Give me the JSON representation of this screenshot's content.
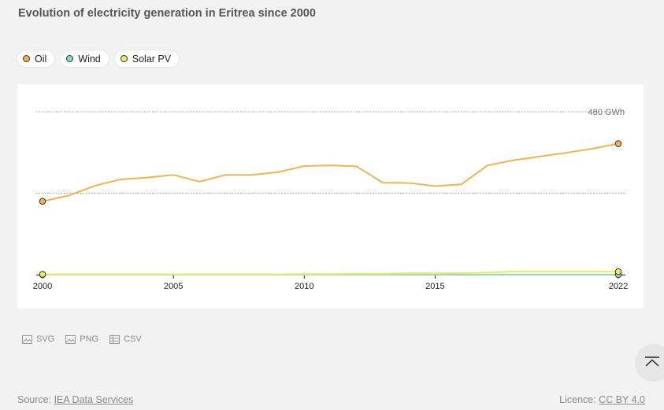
{
  "title": "Evolution of electricity generation in Eritrea since 2000",
  "legend": [
    {
      "label": "Oil",
      "color": "#f0b44f"
    },
    {
      "label": "Wind",
      "color": "#8fd6cf"
    },
    {
      "label": "Solar PV",
      "color": "#ecec5a"
    }
  ],
  "chart_data": {
    "type": "line",
    "title": "Evolution of electricity generation in Eritrea since 2000",
    "x": [
      2000,
      2001,
      2002,
      2003,
      2004,
      2005,
      2006,
      2007,
      2008,
      2009,
      2010,
      2011,
      2012,
      2013,
      2014,
      2015,
      2016,
      2017,
      2018,
      2019,
      2020,
      2021,
      2022
    ],
    "x_ticks": [
      "2000",
      "2005",
      "2010",
      "2015",
      "2022"
    ],
    "y_gridline_label": "480 GWh",
    "ylim": [
      0,
      480
    ],
    "grid": true,
    "legend_position": "top-left",
    "series": [
      {
        "name": "Oil",
        "color": "#f0b44f",
        "values": [
          216,
          233,
          262,
          281,
          286,
          294,
          274,
          294,
          294,
          302,
          320,
          322,
          319,
          271,
          270,
          261,
          266,
          322,
          337,
          348,
          359,
          371,
          386
        ]
      },
      {
        "name": "Wind",
        "color": "#8fd6cf",
        "values": [
          0,
          0,
          0,
          0,
          0,
          0,
          0,
          0,
          0,
          0,
          0,
          0,
          0,
          0,
          0,
          0,
          0,
          0,
          0,
          0,
          0,
          0,
          0
        ]
      },
      {
        "name": "Solar PV",
        "color": "#ecec5a",
        "values": [
          1,
          1,
          1,
          1,
          1,
          1,
          1,
          1,
          1,
          1,
          2,
          2,
          3,
          3,
          4,
          4,
          5,
          6,
          9,
          9,
          9,
          9,
          9
        ]
      }
    ]
  },
  "downloads": {
    "svg": "SVG",
    "png": "PNG",
    "csv": "CSV"
  },
  "footer": {
    "source_prefix": "Source: ",
    "source_link": "IEA Data Services",
    "licence_prefix": "Licence: ",
    "licence_link": "CC BY 4.0"
  }
}
